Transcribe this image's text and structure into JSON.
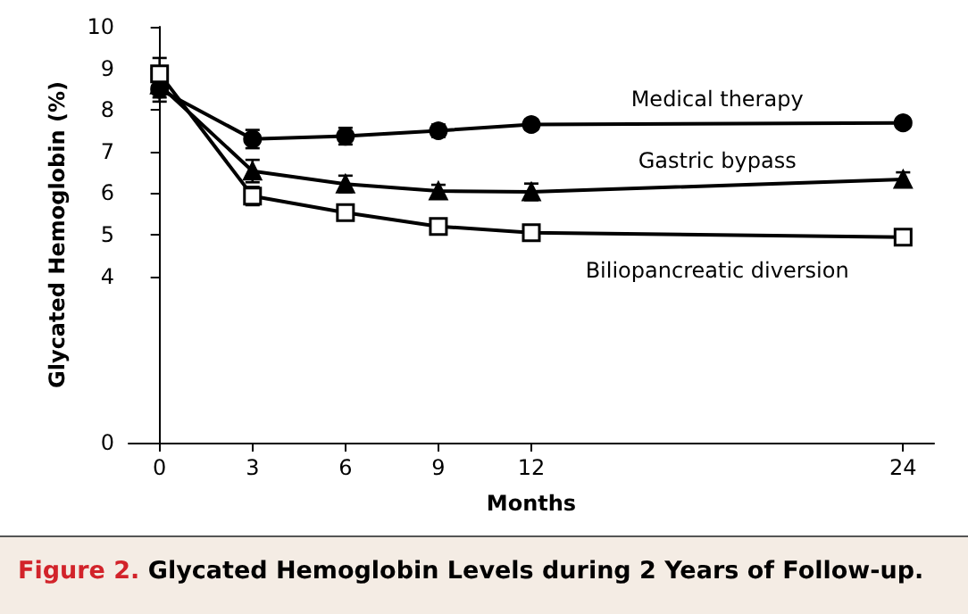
{
  "chart_data": {
    "type": "line",
    "title": "Figure 2. Glycated Hemoglobin Levels during 2 Years of Follow-up.",
    "xlabel": "Months",
    "ylabel": "Glycated Hemoglobin (%)",
    "x": [
      0,
      3,
      6,
      9,
      12,
      24
    ],
    "series": [
      {
        "name": "Medical therapy",
        "color": "#000000",
        "marker": "circle",
        "values": [
          8.5,
          7.3,
          7.37,
          7.5,
          7.65,
          7.69
        ],
        "errors": [
          0.3,
          0.22,
          0.2,
          0.15,
          0.12,
          0.1
        ]
      },
      {
        "name": "Gastric bypass",
        "color": "#000000",
        "marker": "triangle",
        "values": [
          8.6,
          6.53,
          6.22,
          6.05,
          6.03,
          6.33
        ],
        "errors": [
          0.3,
          0.27,
          0.2,
          0.15,
          0.2,
          0.17
        ]
      },
      {
        "name": "Biliopancreatic diversion",
        "color": "#000000",
        "marker": "square",
        "values": [
          8.87,
          5.93,
          5.53,
          5.2,
          5.05,
          4.94
        ],
        "errors": [
          0.38,
          0.22,
          null,
          null,
          null,
          null
        ]
      }
    ],
    "xlim": [
      -1,
      25
    ],
    "xticks": [
      0,
      3,
      6,
      9,
      12,
      24
    ],
    "ylim": [
      0,
      10
    ],
    "yticks": [
      0,
      4,
      5,
      6,
      7,
      8,
      9,
      10
    ],
    "grid": false,
    "line_style": "solid"
  }
}
